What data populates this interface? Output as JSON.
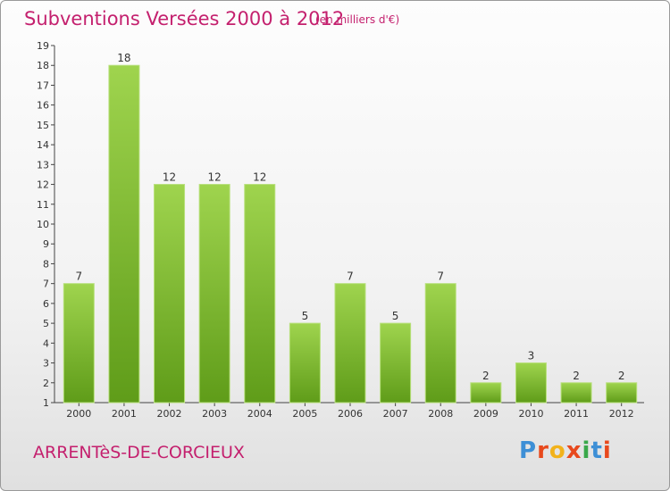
{
  "header": {
    "title": "Subventions Versées 2000 à 2012",
    "subtitle": "(en milliers d'€)"
  },
  "footer": {
    "commune": "ARRENTèS-DE-CORCIEUX",
    "brand": "Proxiti",
    "brand_letters": [
      "P",
      "r",
      "o",
      "x",
      "i",
      "t",
      "i"
    ],
    "brand_colors": [
      "#3d8fd6",
      "#e8491d",
      "#f2b21b",
      "#e8491d",
      "#3aa84a",
      "#3d8fd6",
      "#e8491d"
    ]
  },
  "colors": {
    "accent": "#c4206e",
    "bar_top": "#9fd44e",
    "bar_bottom": "#5f9c19"
  },
  "chart_data": {
    "type": "bar",
    "title": "Subventions Versées 2000 à 2012",
    "subtitle": "(en milliers d'€)",
    "categories": [
      "2000",
      "2001",
      "2002",
      "2003",
      "2004",
      "2005",
      "2006",
      "2007",
      "2008",
      "2009",
      "2010",
      "2011",
      "2012"
    ],
    "values": [
      7,
      18,
      12,
      12,
      12,
      5,
      7,
      5,
      7,
      2,
      3,
      2,
      2
    ],
    "ylim": [
      1,
      19
    ],
    "yticks": [
      1,
      2,
      3,
      4,
      5,
      6,
      7,
      8,
      9,
      10,
      11,
      12,
      13,
      14,
      15,
      16,
      17,
      18,
      19
    ],
    "grid": false,
    "legend": "none"
  }
}
